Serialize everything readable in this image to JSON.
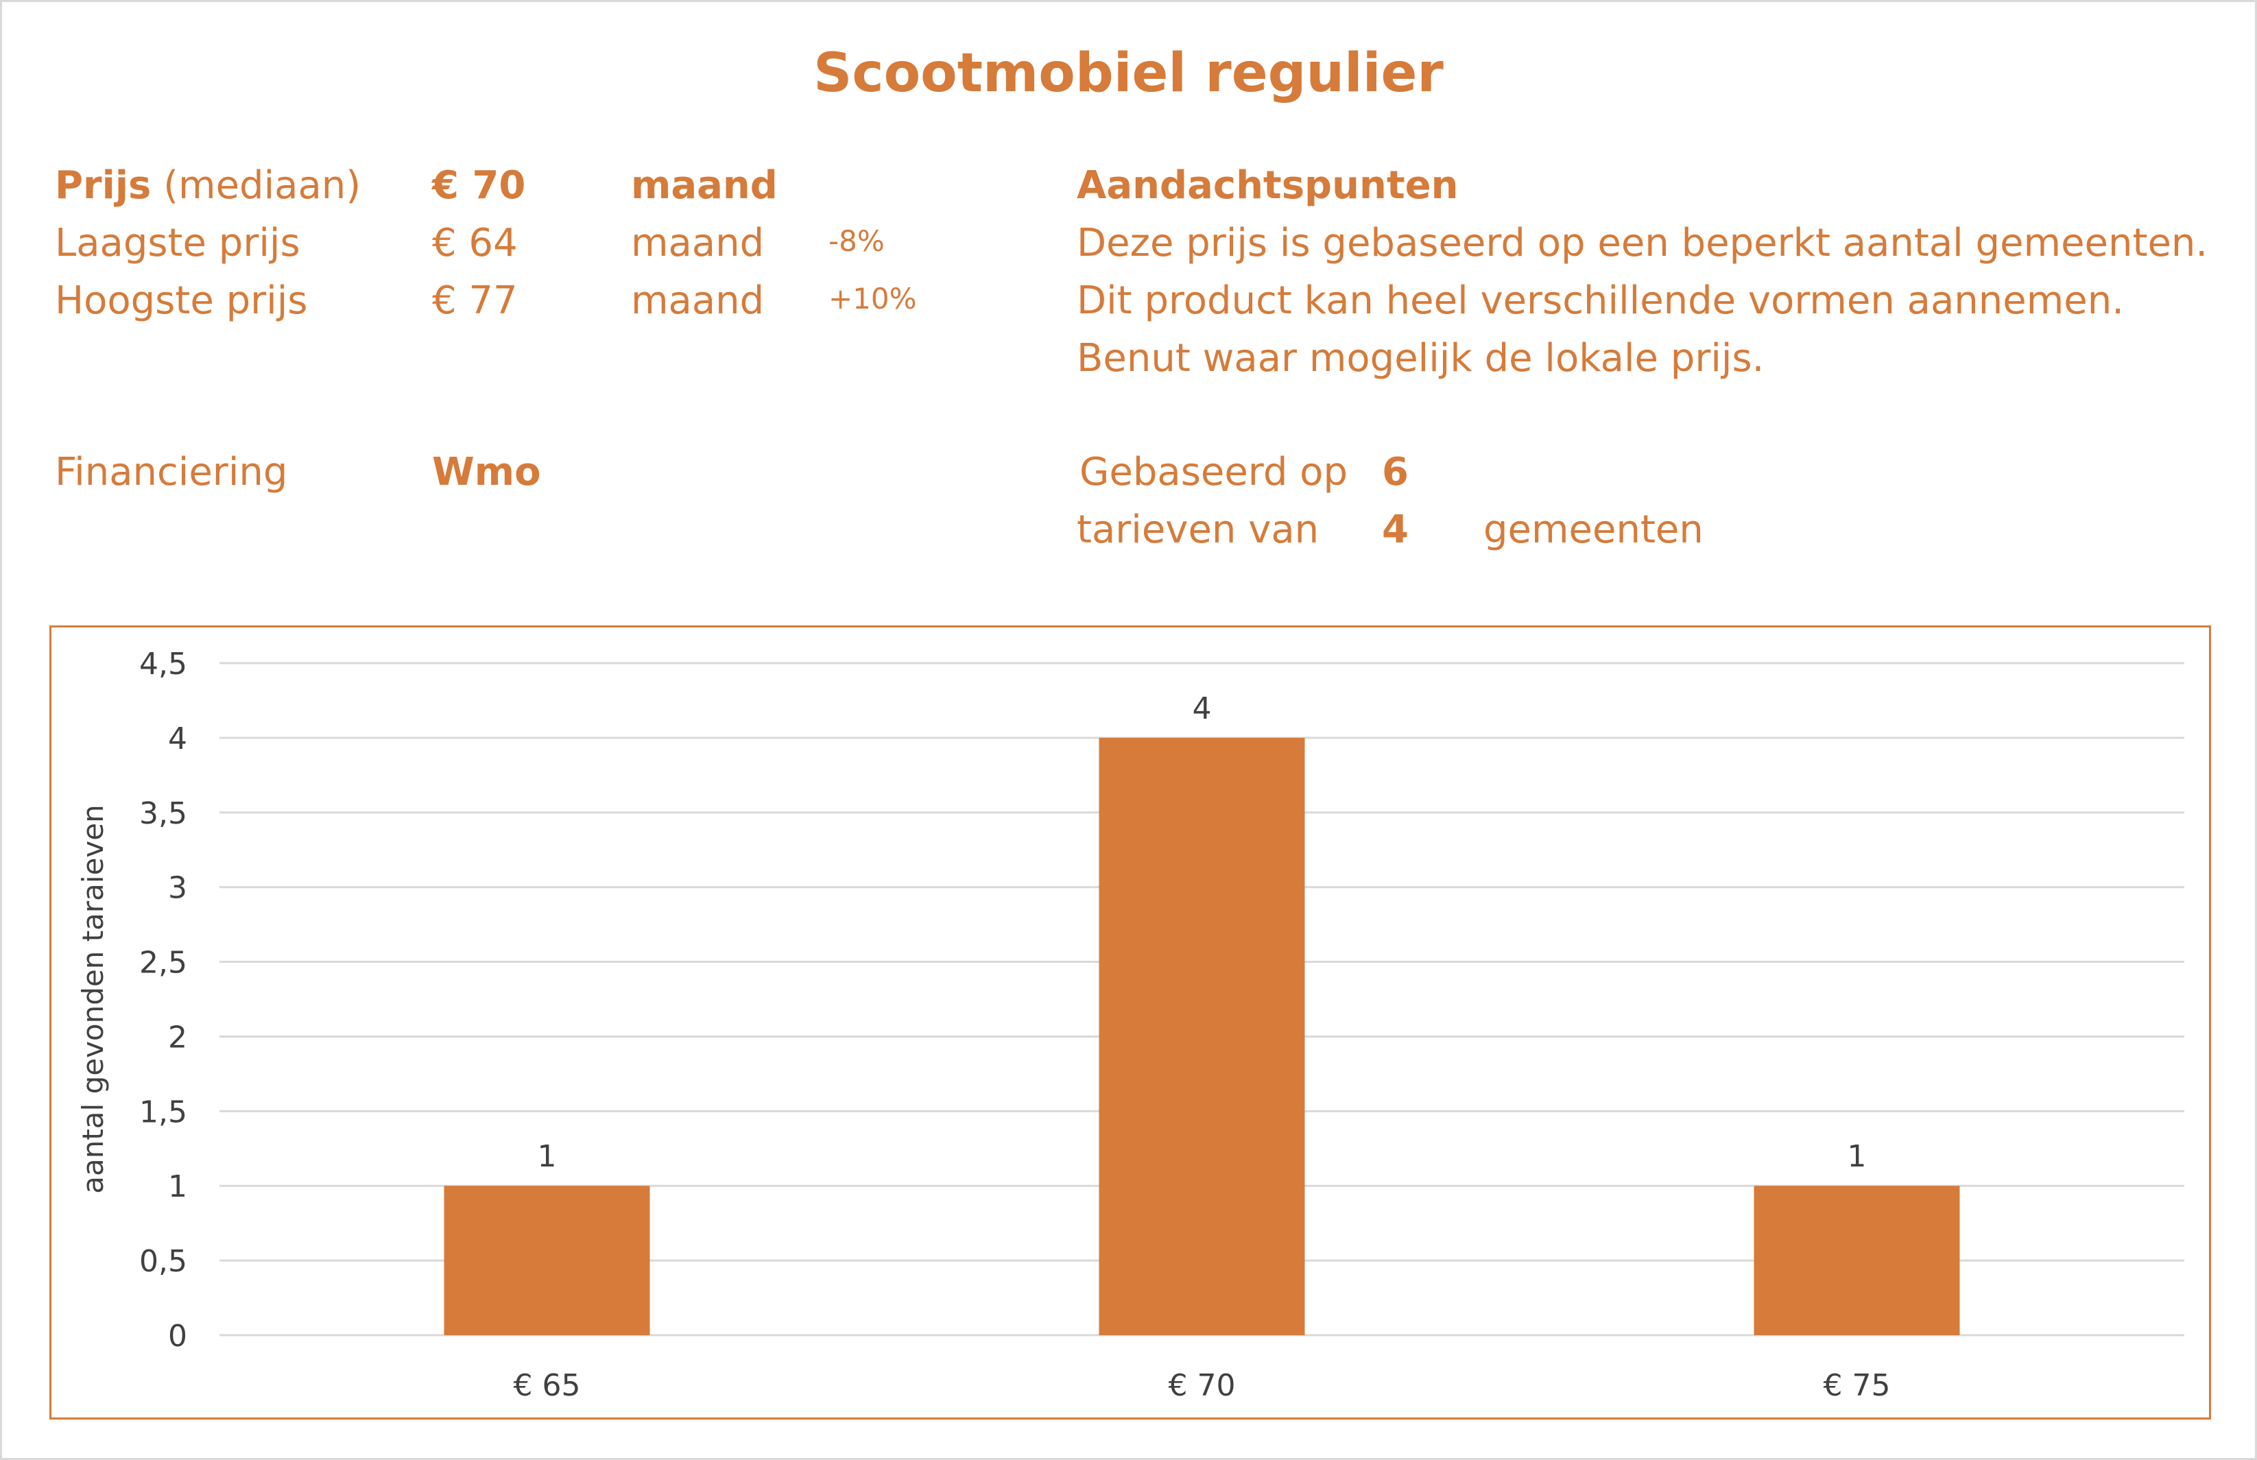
{
  "title": "Scootmobiel regulier",
  "info": {
    "prijs_label_bold": "Prijs",
    "prijs_label_rest": " (mediaan)",
    "prijs_value": "€ 70",
    "prijs_unit": "maand",
    "laagste_label": "Laagste prijs",
    "laagste_value": "€ 64",
    "laagste_unit": "maand",
    "laagste_pct": "-8%",
    "hoogste_label": "Hoogste prijs",
    "hoogste_value": "€ 77",
    "hoogste_unit": "maand",
    "hoogste_pct": "+10%",
    "financiering_label": "Financiering",
    "financiering_value": "Wmo"
  },
  "notes": {
    "heading": "Aandachtspunten",
    "lines": [
      "Deze prijs is gebaseerd op een beperkt aantal gemeenten.",
      "Dit product kan heel verschillende vormen aannemen.",
      "Benut waar mogelijk de lokale prijs."
    ],
    "based_label": "Gebaseerd op",
    "based_value": "6",
    "tarieven_label": "tarieven van",
    "tarieven_value": "4",
    "gemeenten_label": "gemeenten"
  },
  "colors": {
    "accent": "#D67B3A",
    "grid": "#d9d9d9",
    "text": "#404040"
  },
  "chart_data": {
    "type": "bar",
    "categories": [
      "€ 65",
      "€ 70",
      "€ 75"
    ],
    "values": [
      1,
      4,
      1
    ],
    "ylabel": "aantal gevonden taraieven",
    "xlabel": "",
    "ylim": [
      0,
      4.5
    ],
    "yticks": [
      "0",
      "0,5",
      "1",
      "1,5",
      "2",
      "2,5",
      "3",
      "3,5",
      "4",
      "4,5"
    ],
    "data_labels": [
      "1",
      "4",
      "1"
    ],
    "grid": true
  }
}
